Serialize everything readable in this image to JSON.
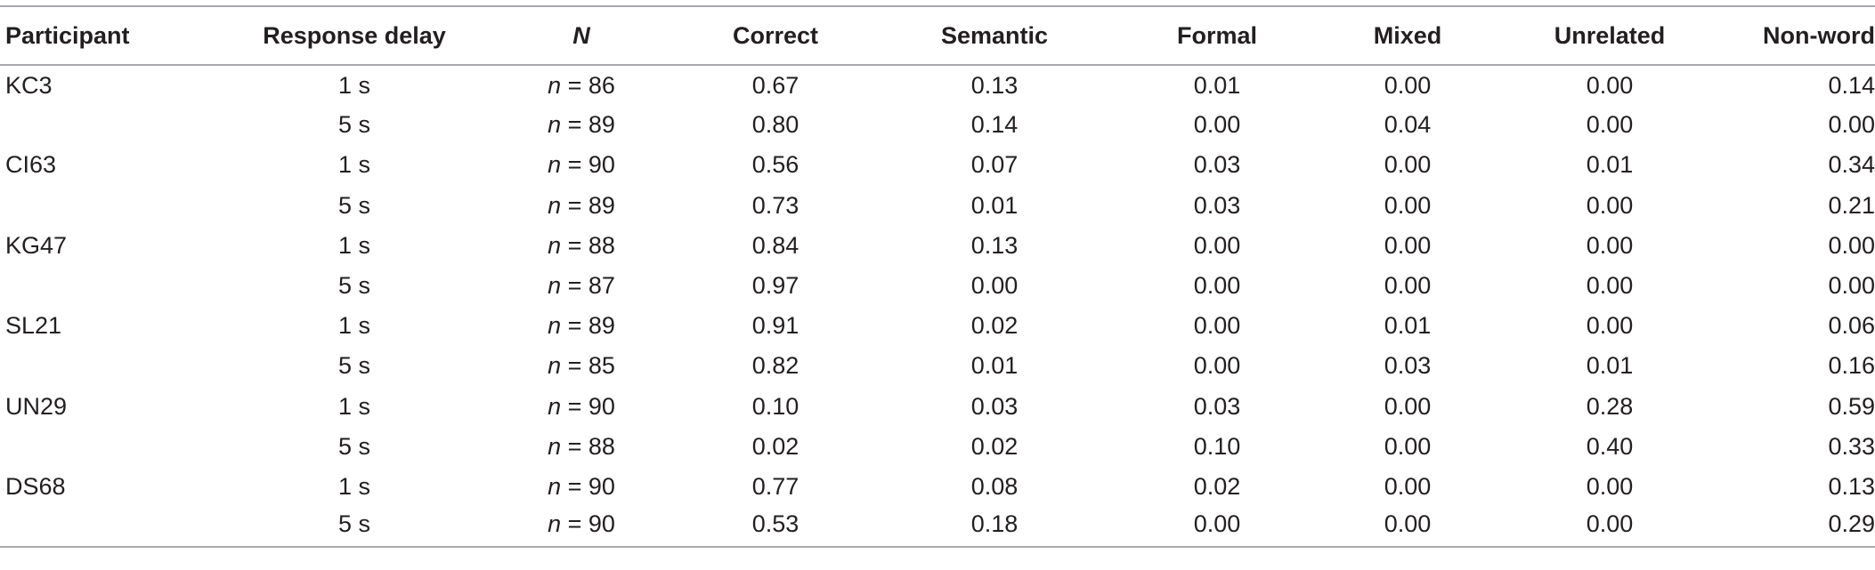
{
  "table": {
    "headers": {
      "participant": "Participant",
      "response_delay": "Response delay",
      "n": "N",
      "correct": "Correct",
      "semantic": "Semantic",
      "formal": "Formal",
      "mixed": "Mixed",
      "unrelated": "Unrelated",
      "non_word": "Non-word"
    },
    "n_symbol": "n",
    "n_equals": " = ",
    "rows": [
      {
        "participant": "KC3",
        "delay": "1 s",
        "n": "86",
        "correct": "0.67",
        "semantic": "0.13",
        "formal": "0.01",
        "mixed": "0.00",
        "unrelated": "0.00",
        "non_word": "0.14"
      },
      {
        "participant": "",
        "delay": "5 s",
        "n": "89",
        "correct": "0.80",
        "semantic": "0.14",
        "formal": "0.00",
        "mixed": "0.04",
        "unrelated": "0.00",
        "non_word": "0.00"
      },
      {
        "participant": "CI63",
        "delay": "1 s",
        "n": "90",
        "correct": "0.56",
        "semantic": "0.07",
        "formal": "0.03",
        "mixed": "0.00",
        "unrelated": "0.01",
        "non_word": "0.34"
      },
      {
        "participant": "",
        "delay": "5 s",
        "n": "89",
        "correct": "0.73",
        "semantic": "0.01",
        "formal": "0.03",
        "mixed": "0.00",
        "unrelated": "0.00",
        "non_word": "0.21"
      },
      {
        "participant": "KG47",
        "delay": "1 s",
        "n": "88",
        "correct": "0.84",
        "semantic": "0.13",
        "formal": "0.00",
        "mixed": "0.00",
        "unrelated": "0.00",
        "non_word": "0.00"
      },
      {
        "participant": "",
        "delay": "5 s",
        "n": "87",
        "correct": "0.97",
        "semantic": "0.00",
        "formal": "0.00",
        "mixed": "0.00",
        "unrelated": "0.00",
        "non_word": "0.00"
      },
      {
        "participant": "SL21",
        "delay": "1 s",
        "n": "89",
        "correct": "0.91",
        "semantic": "0.02",
        "formal": "0.00",
        "mixed": "0.01",
        "unrelated": "0.00",
        "non_word": "0.06"
      },
      {
        "participant": "",
        "delay": "5 s",
        "n": "85",
        "correct": "0.82",
        "semantic": "0.01",
        "formal": "0.00",
        "mixed": "0.03",
        "unrelated": "0.01",
        "non_word": "0.16"
      },
      {
        "participant": "UN29",
        "delay": "1 s",
        "n": "90",
        "correct": "0.10",
        "semantic": "0.03",
        "formal": "0.03",
        "mixed": "0.00",
        "unrelated": "0.28",
        "non_word": "0.59"
      },
      {
        "participant": "",
        "delay": "5 s",
        "n": "88",
        "correct": "0.02",
        "semantic": "0.02",
        "formal": "0.10",
        "mixed": "0.00",
        "unrelated": "0.40",
        "non_word": "0.33"
      },
      {
        "participant": "DS68",
        "delay": "1 s",
        "n": "90",
        "correct": "0.77",
        "semantic": "0.08",
        "formal": "0.02",
        "mixed": "0.00",
        "unrelated": "0.00",
        "non_word": "0.13"
      },
      {
        "participant": "",
        "delay": "5 s",
        "n": "90",
        "correct": "0.53",
        "semantic": "0.18",
        "formal": "0.00",
        "mixed": "0.00",
        "unrelated": "0.00",
        "non_word": "0.29"
      }
    ]
  }
}
